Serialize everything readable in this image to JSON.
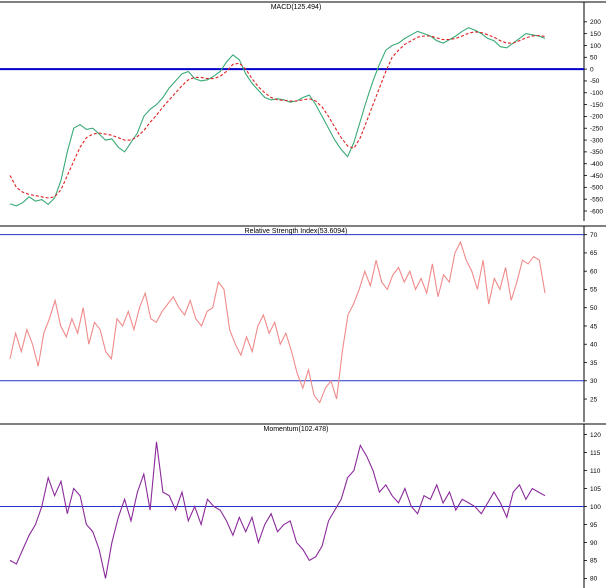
{
  "chart_data": [
    {
      "type": "line",
      "title": "MACD(125.494)",
      "ylim": [
        -600,
        250
      ],
      "ytick_labels": [
        "200",
        "150",
        "100",
        "50",
        "0",
        "-50",
        "-100",
        "-150",
        "-200",
        "-250",
        "-300",
        "-350",
        "-400",
        "-450",
        "-500",
        "-550",
        "-600"
      ],
      "reference_line": 0,
      "series": [
        {
          "name": "",
          "color": "#3aaa78",
          "style": "solid",
          "values": [
            -570,
            -578,
            -565,
            -540,
            -558,
            -552,
            -572,
            -545,
            -470,
            -350,
            -250,
            -235,
            -255,
            -250,
            -275,
            -300,
            -295,
            -330,
            -350,
            -310,
            -270,
            -200,
            -170,
            -150,
            -120,
            -80,
            -50,
            -20,
            -10,
            -40,
            -50,
            -45,
            -30,
            -10,
            30,
            60,
            40,
            -20,
            -60,
            -90,
            -120,
            -130,
            -125,
            -130,
            -140,
            -135,
            -120,
            -110,
            -150,
            -200,
            -250,
            -300,
            -340,
            -370,
            -310,
            -220,
            -130,
            -50,
            20,
            80,
            100,
            110,
            130,
            145,
            160,
            150,
            140,
            120,
            110,
            125,
            140,
            160,
            175,
            165,
            150,
            130,
            120,
            95,
            90,
            110,
            130,
            150,
            145,
            140,
            130
          ]
        },
        {
          "name": "",
          "color": "#dd2222",
          "style": "dashed",
          "values": [
            -450,
            -500,
            -520,
            -530,
            -535,
            -540,
            -545,
            -540,
            -510,
            -450,
            -390,
            -330,
            -290,
            -275,
            -270,
            -275,
            -280,
            -290,
            -300,
            -300,
            -285,
            -260,
            -225,
            -195,
            -160,
            -130,
            -100,
            -70,
            -45,
            -35,
            -35,
            -40,
            -40,
            -30,
            -10,
            20,
            25,
            0,
            -40,
            -75,
            -100,
            -120,
            -130,
            -132,
            -135,
            -135,
            -130,
            -125,
            -135,
            -160,
            -200,
            -245,
            -290,
            -325,
            -335,
            -290,
            -220,
            -150,
            -80,
            -10,
            50,
            80,
            105,
            120,
            135,
            140,
            140,
            132,
            125,
            125,
            130,
            140,
            152,
            158,
            155,
            145,
            135,
            120,
            110,
            110,
            120,
            132,
            140,
            142,
            138
          ]
        }
      ]
    },
    {
      "type": "line",
      "title": "Relative Strength Index(53.6094)",
      "ylim": [
        22,
        71
      ],
      "ytick_labels": [
        "70",
        "65",
        "60",
        "55",
        "50",
        "45",
        "40",
        "35",
        "30",
        "25"
      ],
      "reference_lines": [
        70,
        30
      ],
      "series": [
        {
          "name": "",
          "color": "#f08a8a",
          "style": "solid",
          "values": [
            36,
            43,
            38,
            44,
            40,
            34,
            43,
            47,
            52,
            45,
            42,
            47,
            43,
            50,
            40,
            46,
            44,
            38,
            36,
            47,
            45,
            49,
            44,
            50,
            54,
            47,
            46,
            49,
            51,
            53,
            50,
            48,
            52,
            47,
            45,
            49,
            50,
            57,
            55,
            44,
            40,
            37,
            42,
            38,
            45,
            48,
            43,
            46,
            40,
            43,
            38,
            32,
            28,
            33,
            26,
            24,
            28,
            30,
            25,
            38,
            48,
            51,
            55,
            60,
            56,
            63,
            57,
            55,
            59,
            61,
            57,
            60,
            55,
            58,
            54,
            62,
            53,
            59,
            57,
            65,
            68,
            63,
            60,
            55,
            63,
            51,
            58,
            55,
            61,
            52,
            57,
            63,
            62,
            64,
            63,
            54
          ]
        }
      ]
    },
    {
      "type": "line",
      "title": "Momentum(102.478)",
      "ylim": [
        79,
        121
      ],
      "ytick_labels": [
        "120",
        "115",
        "110",
        "105",
        "100",
        "95",
        "90",
        "85",
        "80"
      ],
      "reference_line": 100,
      "series": [
        {
          "name": "",
          "color": "#8a2a9a",
          "style": "solid",
          "values": [
            85,
            84,
            88,
            92,
            95,
            100,
            108,
            103,
            107,
            98,
            105,
            103,
            95,
            93,
            88,
            80,
            90,
            97,
            102,
            96,
            104,
            109,
            99,
            118,
            104,
            103,
            99,
            104,
            96,
            100,
            95,
            102,
            100,
            99,
            96,
            92,
            97,
            93,
            97,
            90,
            95,
            98,
            93,
            95,
            96,
            90,
            88,
            85,
            86,
            89,
            96,
            99,
            102,
            108,
            110,
            117,
            114,
            110,
            104,
            106,
            103,
            101,
            105,
            100,
            98,
            103,
            102,
            106,
            101,
            104,
            99,
            102,
            101,
            100,
            98,
            101,
            104,
            101,
            97,
            104,
            106,
            102,
            105,
            104,
            103
          ]
        }
      ]
    }
  ]
}
